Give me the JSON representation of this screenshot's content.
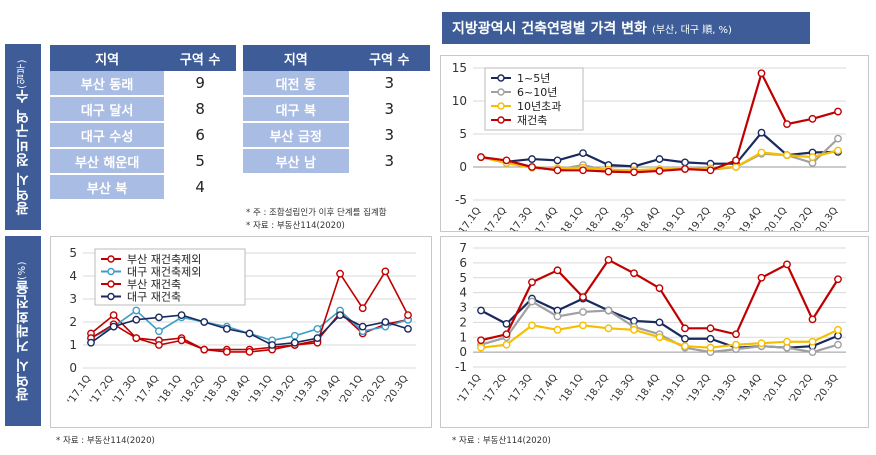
{
  "left_top": {
    "side_label": "광역시 정비구역 수",
    "side_label_small": "(일부)",
    "table1": {
      "headers": [
        "지역",
        "구역 수"
      ],
      "rows": [
        [
          "부산 동래",
          "9"
        ],
        [
          "대구 달서",
          "8"
        ],
        [
          "대구 수성",
          "6"
        ],
        [
          "부산 해운대",
          "5"
        ],
        [
          "부산 북",
          "4"
        ]
      ]
    },
    "table2": {
      "headers": [
        "지역",
        "구역 수"
      ],
      "rows": [
        [
          "대전 동",
          "3"
        ],
        [
          "대구 북",
          "3"
        ],
        [
          "부산 금정",
          "3"
        ],
        [
          "부산 남",
          "3"
        ]
      ]
    },
    "note1": "* 주 : 조합설립인가 이후 단계를 집계함",
    "note2": "* 자료 : 부동산114(2020)"
  },
  "left_bottom": {
    "side_label": "광역시 거래회전율",
    "side_label_small": "(%)",
    "note": "* 자료 : 부동산114(2020)"
  },
  "right": {
    "title": "지방광역시 건축연령별 가격 변화",
    "title_small": "(부산, 대구 順, %)",
    "note": "* 자료 : 부동산114(2020)"
  },
  "colors": {
    "navy": "#1b2a5e",
    "gray": "#a0a0a0",
    "yellow": "#f6be00",
    "red": "#c00000",
    "lightblue": "#3f9ec6",
    "header": "#3d5c98",
    "cell": "#a9bce3"
  },
  "chart_data": [
    {
      "id": "turnover",
      "type": "line",
      "categories": [
        "'17.1Q",
        "'17.2Q",
        "'17.3Q",
        "'17.4Q",
        "'18.1Q",
        "'18.2Q",
        "'18.3Q",
        "'18.4Q",
        "'19.1Q",
        "'19.2Q",
        "'19.3Q",
        "'19.4Q",
        "'20.1Q",
        "'20.2Q",
        "'20.3Q"
      ],
      "ylim": [
        0,
        5
      ],
      "yticks": [
        0,
        1,
        2,
        3,
        4,
        5
      ],
      "grid": true,
      "legend": "top-left",
      "series": [
        {
          "name": "부산 재건축제외",
          "color": "#c00000",
          "hollow": true,
          "values": [
            1.5,
            2.3,
            1.3,
            1.2,
            1.3,
            0.8,
            0.8,
            0.8,
            0.9,
            1.0,
            1.2,
            2.4,
            1.5,
            1.9,
            2.1
          ]
        },
        {
          "name": "대구 재건축제외",
          "color": "#3f9ec6",
          "hollow": true,
          "values": [
            1.3,
            1.8,
            2.5,
            1.6,
            2.2,
            2.0,
            1.8,
            1.5,
            1.2,
            1.4,
            1.7,
            2.5,
            1.6,
            1.8,
            2.1
          ]
        },
        {
          "name": "부산 재건축",
          "color": "#c00000",
          "hollow": false,
          "values": [
            1.3,
            1.9,
            1.3,
            1.0,
            1.2,
            0.8,
            0.7,
            0.7,
            0.8,
            1.0,
            1.1,
            4.1,
            2.6,
            4.2,
            2.3
          ]
        },
        {
          "name": "대구 재건축",
          "color": "#1b2a5e",
          "hollow": false,
          "values": [
            1.1,
            1.8,
            2.1,
            2.2,
            2.3,
            2.0,
            1.7,
            1.5,
            1.0,
            1.1,
            1.3,
            2.3,
            1.8,
            2.0,
            1.7
          ]
        }
      ]
    },
    {
      "id": "busan_price",
      "type": "line",
      "categories": [
        "'17.1Q",
        "'17.2Q",
        "'17.3Q",
        "'17.4Q",
        "'18.1Q",
        "'18.2Q",
        "'18.3Q",
        "'18.4Q",
        "'19.1Q",
        "'19.2Q",
        "'19.3Q",
        "'19.4Q",
        "'20.1Q",
        "'20.2Q",
        "'20.3Q"
      ],
      "ylim": [
        -5,
        15
      ],
      "yticks": [
        -5,
        0,
        5,
        10,
        15
      ],
      "grid": true,
      "legend": "top-left",
      "series": [
        {
          "name": "1~5년",
          "color": "#1b2a5e",
          "values": [
            1.5,
            0.8,
            1.2,
            1.0,
            2.1,
            0.3,
            0.1,
            1.2,
            0.7,
            0.5,
            0.5,
            5.2,
            1.8,
            2.2,
            2.3
          ]
        },
        {
          "name": "6~10년",
          "color": "#a0a0a0",
          "values": [
            1.5,
            0.6,
            -0.1,
            -0.4,
            0.3,
            -0.6,
            -0.7,
            -0.5,
            -0.3,
            -0.4,
            0.0,
            2.0,
            1.8,
            0.6,
            4.3
          ]
        },
        {
          "name": "10년초과",
          "color": "#f6be00",
          "values": [
            1.5,
            0.6,
            -0.1,
            -0.2,
            -0.1,
            -0.4,
            -0.5,
            -0.3,
            -0.3,
            -0.2,
            0.0,
            2.2,
            1.8,
            1.5,
            2.5
          ]
        },
        {
          "name": "재건축",
          "color": "#c00000",
          "values": [
            1.5,
            1.0,
            0.0,
            -0.5,
            -0.5,
            -0.7,
            -0.8,
            -0.6,
            -0.3,
            -0.5,
            1.0,
            14.2,
            6.5,
            7.3,
            8.4
          ]
        }
      ]
    },
    {
      "id": "daegu_price",
      "type": "line",
      "categories": [
        "'17.1Q",
        "'17.2Q",
        "'17.3Q",
        "'17.4Q",
        "'18.1Q",
        "'18.2Q",
        "'18.3Q",
        "'18.4Q",
        "'19.1Q",
        "'19.2Q",
        "'19.3Q",
        "'19.4Q",
        "'20.1Q",
        "'20.2Q",
        "'20.3Q"
      ],
      "ylim": [
        -1,
        7
      ],
      "yticks": [
        -1,
        0,
        1,
        2,
        3,
        4,
        5,
        6,
        7
      ],
      "grid": true,
      "series": [
        {
          "name": "1~5년",
          "color": "#1b2a5e",
          "values": [
            2.8,
            1.9,
            3.6,
            2.8,
            3.6,
            2.8,
            2.1,
            2.0,
            0.9,
            0.9,
            0.3,
            0.4,
            0.3,
            0.4,
            1.1
          ]
        },
        {
          "name": "6~10년",
          "color": "#a0a0a0",
          "values": [
            0.5,
            1.0,
            3.4,
            2.4,
            2.7,
            2.8,
            1.7,
            1.2,
            0.3,
            0.0,
            0.2,
            0.4,
            0.3,
            0.0,
            0.5
          ]
        },
        {
          "name": "10년초과",
          "color": "#f6be00",
          "values": [
            0.3,
            0.5,
            1.8,
            1.5,
            1.8,
            1.6,
            1.5,
            1.0,
            0.4,
            0.3,
            0.5,
            0.6,
            0.7,
            0.7,
            1.5
          ]
        },
        {
          "name": "재건축",
          "color": "#c00000",
          "values": [
            0.8,
            1.2,
            4.7,
            5.5,
            3.7,
            6.2,
            5.3,
            4.3,
            1.6,
            1.6,
            1.2,
            5.0,
            5.9,
            2.2,
            4.9
          ]
        }
      ]
    }
  ]
}
